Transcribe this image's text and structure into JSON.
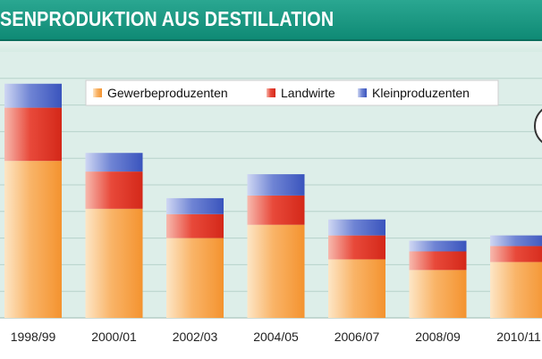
{
  "chart_data": {
    "type": "bar",
    "stacked": true,
    "title": "SENPRODUKTION AUS DESTILLATION",
    "xlabel": "",
    "ylabel": "",
    "ylim": [
      0,
      100
    ],
    "grid": true,
    "legend_position": "top",
    "categories": [
      "1998/99",
      "2000/01",
      "2002/03",
      "2004/05",
      "2006/07",
      "2008/09",
      "2010/11"
    ],
    "series": [
      {
        "name": "Gewerbeproduzenten",
        "color": "#f7a24a",
        "values": [
          59,
          41,
          30,
          35,
          22,
          18,
          21
        ]
      },
      {
        "name": "Landwirte",
        "color": "#e2372a",
        "values": [
          20,
          14,
          9,
          11,
          9,
          7,
          6
        ]
      },
      {
        "name": "Kleinproduzenten",
        "color": "#4a63c6",
        "values": [
          9,
          7,
          6,
          8,
          6,
          4,
          4
        ]
      }
    ],
    "colors": {
      "plot_background": "#ddeee9",
      "gridline": "#b6d2ca",
      "title_bar": "#14917c"
    }
  }
}
